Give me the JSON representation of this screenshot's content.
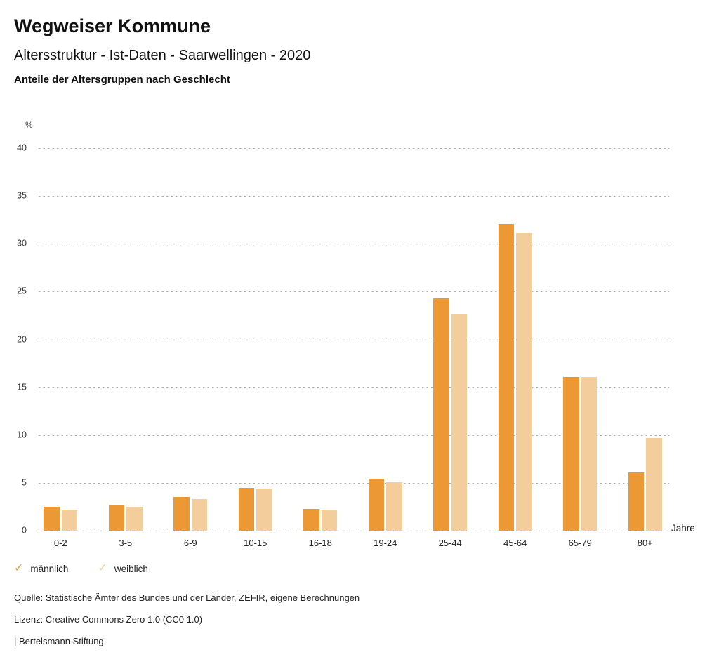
{
  "header": {
    "title": "Wegweiser Kommune",
    "subtitle": "Altersstruktur - Ist-Daten - Saarwellingen - 2020",
    "caption": "Anteile der Altersgruppen nach Geschlecht"
  },
  "chart_data": {
    "type": "bar",
    "title": "Anteile der Altersgruppen nach Geschlecht",
    "categories": [
      "0-2",
      "3-5",
      "6-9",
      "10-15",
      "16-18",
      "19-24",
      "25-44",
      "45-64",
      "65-79",
      "80+"
    ],
    "series": [
      {
        "name": "männlich",
        "color": "#EC9935",
        "values": [
          2.5,
          2.7,
          3.5,
          4.5,
          2.3,
          5.4,
          24.3,
          32.1,
          16.1,
          6.1
        ]
      },
      {
        "name": "weiblich",
        "color": "#F4CD9C",
        "values": [
          2.2,
          2.5,
          3.3,
          4.4,
          2.2,
          5.1,
          22.6,
          31.1,
          16.1,
          9.7
        ]
      }
    ],
    "xlabel": "Jahre",
    "ylabel": "%",
    "ylim": [
      0,
      40
    ],
    "ytick_step": 5,
    "grid": "horizontal-dotted",
    "legend_position": "bottom-left"
  },
  "legend": {
    "items": [
      {
        "label": "männlich",
        "color": "#EC9935",
        "icon": "check-icon"
      },
      {
        "label": "weiblich",
        "color": "#F4CD9C",
        "icon": "check-icon"
      }
    ]
  },
  "footer": {
    "source": "Quelle: Statistische Ämter des Bundes und der Länder, ZEFIR, eigene Berechnungen",
    "license": "Lizenz: Creative Commons Zero 1.0 (CC0 1.0)",
    "attribution": "| Bertelsmann Stiftung"
  }
}
